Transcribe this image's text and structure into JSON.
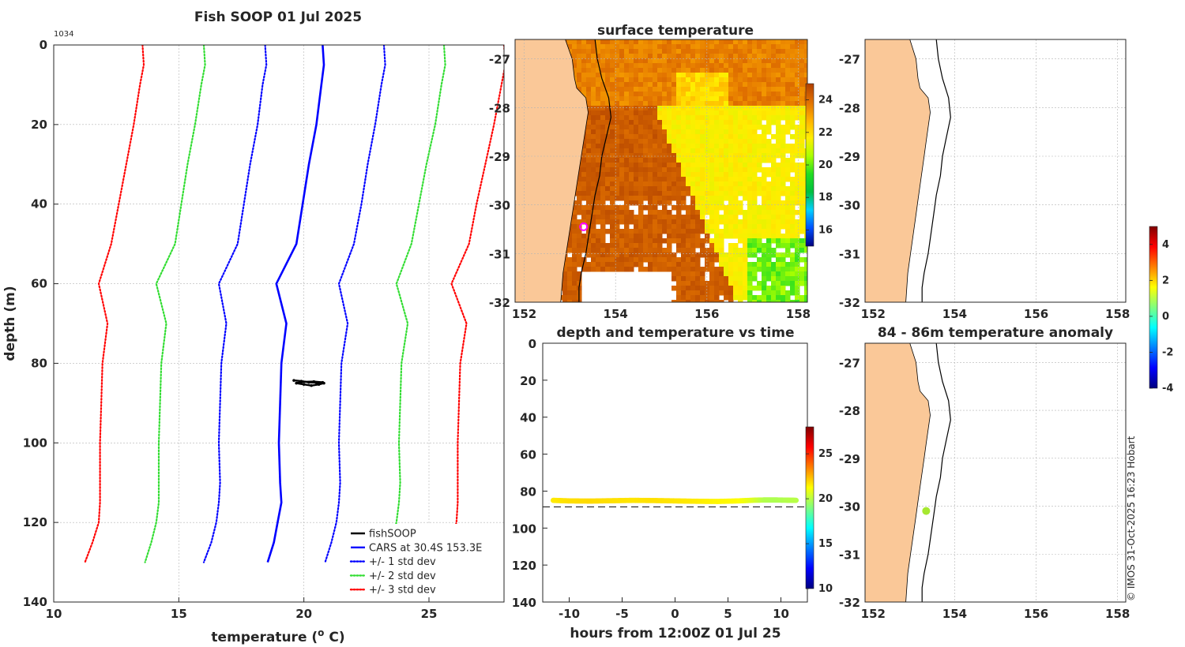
{
  "figure": {
    "title": "Fish SOOP 01 Jul 2025",
    "id_label": "1034",
    "copyright": "© IMOS 31-Oct-2025 16:23 Hobart"
  },
  "colormaps": {
    "jet": [
      "#00007f",
      "#0000ff",
      "#007fff",
      "#00ffff",
      "#7fff7f",
      "#ffff00",
      "#ff7f00",
      "#ff0000",
      "#7f0000"
    ],
    "sst": [
      "#00007f",
      "#0050ff",
      "#00d0ff",
      "#00c040",
      "#22dd22",
      "#aaff00",
      "#ffee00",
      "#ffb000",
      "#e07000",
      "#b04000"
    ],
    "land": "#fac898"
  },
  "chart_data": [
    {
      "type": "line",
      "id": "profile",
      "title": "Fish SOOP 01 Jul 2025",
      "xlabel": "temperature (",
      "xlabel_sup": "o",
      "xlabel_tail": " C)",
      "ylabel": "depth (m)",
      "xlim": [
        10,
        28
      ],
      "ylim": [
        0,
        140
      ],
      "xticks": [
        "10",
        "15",
        "20",
        "25"
      ],
      "yticks": [
        "0",
        "20",
        "40",
        "60",
        "80",
        "100",
        "120",
        "140"
      ],
      "depths": [
        0,
        5,
        10,
        20,
        30,
        40,
        50,
        60,
        70,
        80,
        90,
        100,
        110,
        115,
        120,
        125,
        130
      ],
      "series": [
        {
          "name": "CARS at 30.4S 153.3E",
          "color": "#0000ff",
          "style": "solid",
          "values": [
            20.75,
            20.8,
            20.7,
            20.5,
            20.2,
            19.95,
            19.7,
            18.9,
            19.3,
            19.1,
            19.05,
            19.0,
            19.05,
            19.1,
            18.95,
            18.8,
            18.55
          ]
        },
        {
          "name": "+/- 1 std dev",
          "color": "#0000ff",
          "style": "dotted",
          "values": [
            23.2,
            23.25,
            23.1,
            22.85,
            22.55,
            22.3,
            22.0,
            21.4,
            21.75,
            21.5,
            21.45,
            21.4,
            21.45,
            21.4,
            21.3,
            21.1,
            20.85
          ]
        },
        {
          "name": "+/- 1 std dev (lower)",
          "color": "#0000ff",
          "style": "dotted",
          "values": [
            18.45,
            18.5,
            18.35,
            18.15,
            17.85,
            17.6,
            17.35,
            16.6,
            16.9,
            16.7,
            16.65,
            16.6,
            16.65,
            16.6,
            16.5,
            16.3,
            16.0
          ]
        },
        {
          "name": "+/- 2 std dev",
          "color": "#33dd33",
          "style": "dotted",
          "values": [
            25.6,
            25.65,
            25.5,
            25.25,
            24.9,
            24.6,
            24.3,
            23.7,
            24.15,
            23.9,
            23.85,
            23.8,
            23.85,
            23.8,
            23.7,
            23.5,
            23.2
          ]
        },
        {
          "name": "+/- 2 std dev (lower)",
          "color": "#33dd33",
          "style": "dotted",
          "values": [
            16.0,
            16.05,
            15.9,
            15.65,
            15.35,
            15.1,
            14.85,
            14.1,
            14.5,
            14.3,
            14.25,
            14.2,
            14.2,
            14.2,
            14.1,
            13.9,
            13.65
          ]
        },
        {
          "name": "+/- 3 std dev",
          "color": "#ff0000",
          "style": "dotted",
          "values": [
            28.0,
            28.05,
            27.9,
            27.6,
            27.25,
            26.9,
            26.6,
            25.9,
            26.5,
            26.25,
            26.2,
            26.15,
            26.15,
            26.15,
            26.1,
            25.9,
            25.6
          ]
        },
        {
          "name": "+/- 3 std dev (lower)",
          "color": "#ff0000",
          "style": "dotted",
          "values": [
            13.55,
            13.6,
            13.45,
            13.2,
            12.9,
            12.6,
            12.3,
            11.8,
            12.15,
            11.95,
            11.9,
            11.85,
            11.85,
            11.85,
            11.8,
            11.55,
            11.25
          ]
        }
      ],
      "fishsoop": {
        "name": "fishSOOP",
        "color": "#000000",
        "x": [
          19.6,
          19.9,
          20.2,
          20.5,
          20.8,
          20.6,
          20.3,
          20.0,
          19.7,
          19.9,
          20.4,
          20.75
        ],
        "y": [
          84.3,
          84.5,
          84.8,
          84.9,
          85.0,
          85.3,
          85.6,
          85.3,
          85.0,
          84.7,
          84.6,
          84.8
        ]
      },
      "legend": [
        "fishSOOP",
        "CARS at 30.4S 153.3E",
        "+/- 1 std dev",
        "+/- 2 std dev",
        "+/- 3 std dev"
      ]
    },
    {
      "type": "heatmap",
      "id": "sst_map",
      "title": "surface temperature",
      "xlim": [
        151.8,
        158.2
      ],
      "ylim": [
        -32.0,
        -26.6
      ],
      "xticks": [
        "152",
        "154",
        "156",
        "158"
      ],
      "yticks": [
        "-27",
        "-28",
        "-29",
        "-30",
        "-31",
        "-32"
      ],
      "colorbar_range": [
        15,
        25
      ],
      "colorbar_ticks": [
        "16",
        "18",
        "20",
        "22",
        "24"
      ],
      "marker": {
        "lon": 153.3,
        "lat": -30.45,
        "color": "#ff00ff"
      }
    },
    {
      "type": "scatter",
      "id": "depth_time",
      "title": "depth and temperature vs time",
      "xlabel": "hours from 12:00Z 01 Jul 25",
      "xlim": [
        -12.5,
        12.5
      ],
      "ylim": [
        0,
        140
      ],
      "xticks": [
        "-10",
        "-5",
        "0",
        "5",
        "10"
      ],
      "yticks": [
        "0",
        "20",
        "40",
        "60",
        "80",
        "100",
        "120",
        "140"
      ],
      "colorbar_range": [
        10,
        28
      ],
      "colorbar_ticks": [
        "10",
        "15",
        "20",
        "25"
      ],
      "bottom_depth": 88.5,
      "points": {
        "hours": [
          -11.5,
          -10,
          -8,
          -6,
          -4,
          -2,
          0,
          2,
          4,
          6,
          7.5,
          8.5,
          9.5,
          10.5,
          11.5
        ],
        "depths": [
          85.0,
          85.3,
          85.4,
          85.2,
          85.0,
          85.1,
          85.3,
          85.5,
          85.6,
          85.3,
          84.9,
          84.8,
          84.8,
          84.9,
          85.0
        ],
        "temps": [
          21.6,
          21.8,
          21.9,
          21.8,
          21.7,
          21.8,
          21.7,
          21.6,
          21.4,
          21.3,
          20.6,
          19.9,
          19.8,
          19.9,
          20.0
        ]
      }
    },
    {
      "type": "scatter",
      "id": "blank_map",
      "title": "",
      "xlim": [
        151.8,
        158.2
      ],
      "ylim": [
        -32.0,
        -26.6
      ],
      "xticks": [
        "152",
        "154",
        "156",
        "158"
      ],
      "yticks": [
        "-27",
        "-28",
        "-29",
        "-30",
        "-31",
        "-32"
      ]
    },
    {
      "type": "scatter",
      "id": "anomaly_map",
      "title": "84 - 86m temperature anomaly",
      "xlim": [
        151.8,
        158.2
      ],
      "ylim": [
        -32.0,
        -26.6
      ],
      "xticks": [
        "152",
        "154",
        "156",
        "158"
      ],
      "yticks": [
        "-27",
        "-28",
        "-29",
        "-30",
        "-31",
        "-32"
      ],
      "colorbar_range": [
        -4,
        5
      ],
      "colorbar_ticks": [
        "-4",
        "-2",
        "0",
        "2",
        "4"
      ],
      "points": [
        {
          "lon": 153.3,
          "lat": -30.1,
          "anomaly": 1.4,
          "color": "#a6e830"
        }
      ]
    }
  ]
}
